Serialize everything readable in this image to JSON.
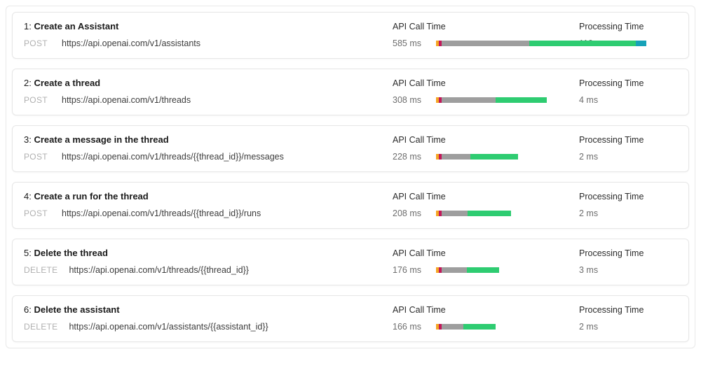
{
  "labels": {
    "api_call_time": "API Call Time",
    "processing_time": "Processing Time"
  },
  "bar": {
    "max_ms": 585,
    "seg_colors": [
      "#f5a623",
      "#c2185b",
      "#9e9e9e",
      "#2ecc71",
      "#17a2b8"
    ]
  },
  "items": [
    {
      "num": "1:",
      "title": "Create an Assistant",
      "method": "POST",
      "url": "https://api.openai.com/v1/assistants",
      "api_ms": "585 ms",
      "proc_ms": "110 ms",
      "segments": [
        8,
        8,
        244,
        295,
        30
      ]
    },
    {
      "num": "2:",
      "title": "Create a thread",
      "method": "POST",
      "url": "https://api.openai.com/v1/threads",
      "api_ms": "308 ms",
      "proc_ms": "4 ms",
      "segments": [
        8,
        8,
        150,
        142,
        0
      ]
    },
    {
      "num": "3:",
      "title": "Create a message in the thread",
      "method": "POST",
      "url": "https://api.openai.com/v1/threads/{{thread_id}}/messages",
      "api_ms": "228 ms",
      "proc_ms": "2 ms",
      "segments": [
        8,
        8,
        80,
        132,
        0
      ]
    },
    {
      "num": "4:",
      "title": "Create a run for the thread",
      "method": "POST",
      "url": "https://api.openai.com/v1/threads/{{thread_id}}/runs",
      "api_ms": "208 ms",
      "proc_ms": "2 ms",
      "segments": [
        8,
        8,
        72,
        120,
        0
      ]
    },
    {
      "num": "5:",
      "title": "Delete the thread",
      "method": "DELETE",
      "url": "https://api.openai.com/v1/threads/{{thread_id}}",
      "api_ms": "176 ms",
      "proc_ms": "3 ms",
      "segments": [
        8,
        8,
        70,
        90,
        0
      ]
    },
    {
      "num": "6:",
      "title": "Delete the assistant",
      "method": "DELETE",
      "url": "https://api.openai.com/v1/assistants/{{assistant_id}}",
      "api_ms": "166 ms",
      "proc_ms": "2 ms",
      "segments": [
        8,
        8,
        60,
        90,
        0
      ]
    }
  ]
}
